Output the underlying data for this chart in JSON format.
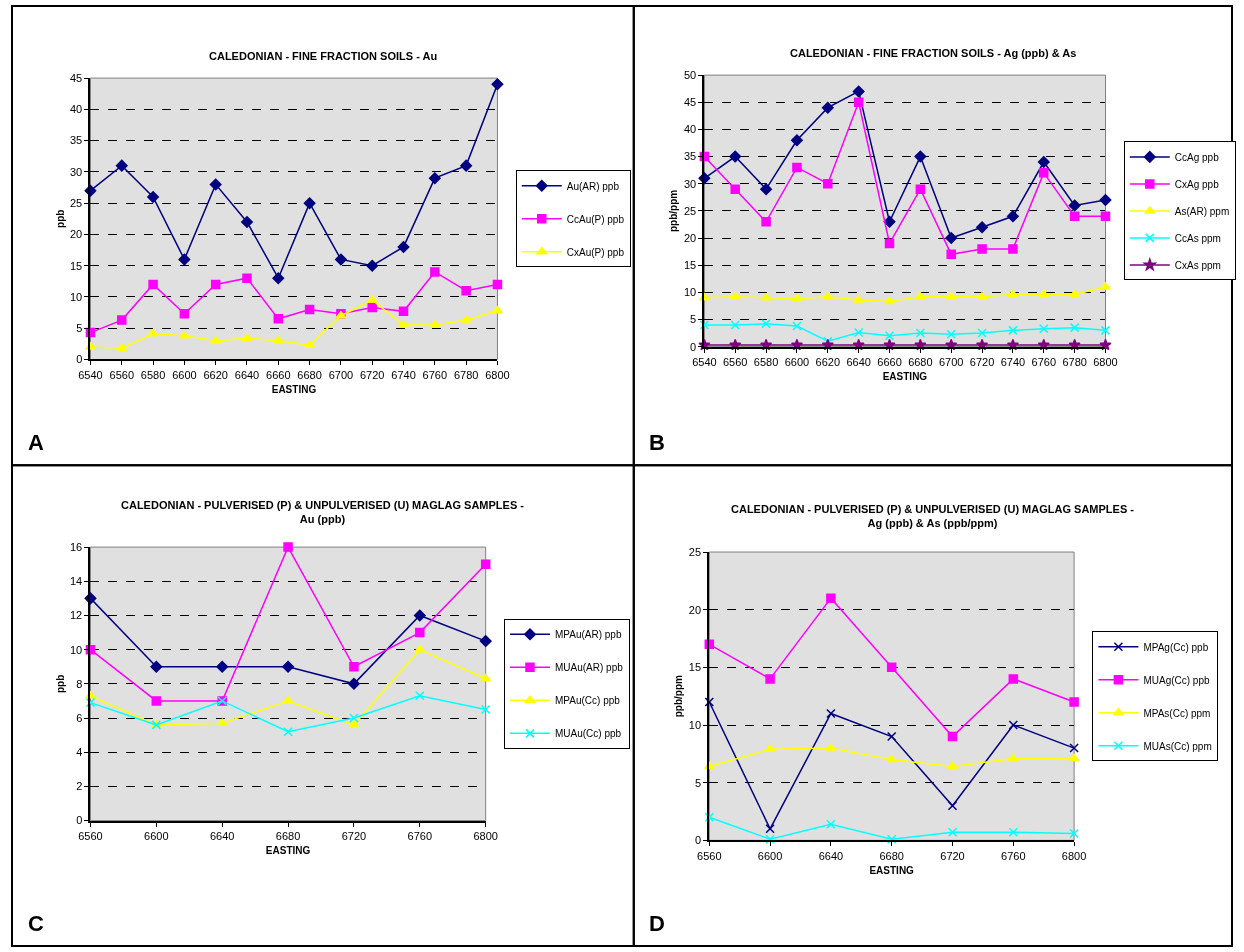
{
  "chart_data": [
    {
      "type": "line",
      "title": "CALEDONIAN - FINE FRACTION SOILS - Au",
      "xlabel": "EASTING",
      "ylabel": "ppb",
      "annotations": [
        "A"
      ],
      "x": [
        6540,
        6560,
        6580,
        6600,
        6620,
        6640,
        6660,
        6680,
        6700,
        6720,
        6740,
        6760,
        6780,
        6800
      ],
      "xlim": [
        6540,
        6800
      ],
      "xticks": [
        6540,
        6560,
        6580,
        6600,
        6620,
        6640,
        6660,
        6680,
        6700,
        6720,
        6740,
        6760,
        6780,
        6800
      ],
      "ylim": [
        0,
        45
      ],
      "yticks": [
        0,
        5,
        10,
        15,
        20,
        25,
        30,
        35,
        40,
        45
      ],
      "grid": "y",
      "legend": "right",
      "series": [
        {
          "name": "Au(AR) ppb",
          "color": "#000080",
          "marker": "diamond",
          "values": [
            27,
            31,
            26,
            16,
            28,
            22,
            13,
            25,
            16,
            15,
            18,
            29,
            31,
            44
          ]
        },
        {
          "name": "CcAu(P) ppb",
          "color": "#ff00ff",
          "marker": "square",
          "values": [
            4.3,
            6.3,
            12,
            7.3,
            12,
            13,
            6.5,
            8,
            7.3,
            8.3,
            7.7,
            14,
            11,
            12
          ]
        },
        {
          "name": "CxAu(P) ppb",
          "color": "#ffff00",
          "marker": "triangle",
          "values": [
            2,
            1.8,
            4.1,
            3.8,
            3,
            3.4,
            3,
            2.3,
            7,
            9.5,
            5.5,
            5.5,
            6.3,
            7.8
          ]
        }
      ]
    },
    {
      "type": "line",
      "title": "CALEDONIAN - FINE FRACTION SOILS - Ag (ppb) & As",
      "xlabel": "EASTING",
      "ylabel": "ppb/ppm",
      "annotations": [
        "B"
      ],
      "x": [
        6540,
        6560,
        6580,
        6600,
        6620,
        6640,
        6660,
        6680,
        6700,
        6720,
        6740,
        6760,
        6780,
        6800
      ],
      "xlim": [
        6540,
        6800
      ],
      "xticks": [
        6540,
        6560,
        6580,
        6600,
        6620,
        6640,
        6660,
        6680,
        6700,
        6720,
        6740,
        6760,
        6780,
        6800
      ],
      "ylim": [
        0,
        50
      ],
      "yticks": [
        0,
        5,
        10,
        15,
        20,
        25,
        30,
        35,
        40,
        45,
        50
      ],
      "grid": "y",
      "legend": "right",
      "series": [
        {
          "name": "CcAg ppb",
          "color": "#000080",
          "marker": "diamond",
          "values": [
            31,
            35,
            29,
            38,
            44,
            47,
            23,
            35,
            20,
            22,
            24,
            34,
            26,
            27
          ]
        },
        {
          "name": "CxAg ppb",
          "color": "#ff00ff",
          "marker": "square",
          "values": [
            35,
            29,
            23,
            33,
            30,
            45,
            19,
            29,
            17,
            18,
            18,
            32,
            24,
            24
          ]
        },
        {
          "name": "As(AR) ppm",
          "color": "#ffff00",
          "marker": "triangle",
          "values": [
            9,
            9.2,
            9,
            8.8,
            9.2,
            8.6,
            8.3,
            9.2,
            9.2,
            9.2,
            9.6,
            9.6,
            9.6,
            11
          ]
        },
        {
          "name": "CcAs ppm",
          "color": "#00ffff",
          "marker": "cross",
          "values": [
            4,
            4,
            4.2,
            3.8,
            1,
            2.6,
            2,
            2.5,
            2.3,
            2.5,
            3,
            3.3,
            3.5,
            3
          ]
        },
        {
          "name": "CxAs ppm",
          "color": "#800080",
          "marker": "star",
          "values": [
            0.3,
            0.3,
            0.3,
            0.3,
            0.3,
            0.3,
            0.3,
            0.3,
            0.3,
            0.3,
            0.3,
            0.3,
            0.3,
            0.3
          ]
        }
      ]
    },
    {
      "type": "line",
      "title": "CALEDONIAN - PULVERISED (P) & UNPULVERISED (U) MAGLAG SAMPLES - Au (ppb)",
      "xlabel": "EASTING",
      "ylabel": "ppb",
      "annotations": [
        "C"
      ],
      "x": [
        6560,
        6600,
        6640,
        6680,
        6720,
        6760,
        6800
      ],
      "xlim": [
        6560,
        6800
      ],
      "xticks": [
        6560,
        6600,
        6640,
        6680,
        6720,
        6760,
        6800
      ],
      "ylim": [
        0,
        16
      ],
      "yticks": [
        0,
        2,
        4,
        6,
        8,
        10,
        12,
        14,
        16
      ],
      "grid": "y",
      "legend": "right",
      "series": [
        {
          "name": "MPAu(AR) ppb",
          "color": "#000080",
          "marker": "diamond",
          "values": [
            13,
            9,
            9,
            9,
            8,
            12,
            10.5
          ]
        },
        {
          "name": "MUAu(AR) ppb",
          "color": "#ff00ff",
          "marker": "square",
          "values": [
            10,
            7,
            7,
            16,
            9,
            11,
            15
          ]
        },
        {
          "name": "MPAu(Cc) ppb",
          "color": "#ffff00",
          "marker": "triangle",
          "values": [
            7.3,
            5.6,
            5.7,
            7,
            5.6,
            10,
            8.3
          ]
        },
        {
          "name": "MUAu(Cc) ppb",
          "color": "#00ffff",
          "marker": "cross",
          "values": [
            6.9,
            5.6,
            7,
            5.2,
            6,
            7.3,
            6.5
          ]
        }
      ]
    },
    {
      "type": "line",
      "title": "CALEDONIAN - PULVERISED (P) & UNPULVERISED (U) MAGLAG SAMPLES - Ag (ppb) & As (ppb/ppm)",
      "xlabel": "EASTING",
      "ylabel": "ppb/ppm",
      "annotations": [
        "D"
      ],
      "x": [
        6560,
        6600,
        6640,
        6680,
        6720,
        6760,
        6800
      ],
      "xlim": [
        6560,
        6800
      ],
      "xticks": [
        6560,
        6600,
        6640,
        6680,
        6720,
        6760,
        6800
      ],
      "ylim": [
        0,
        25
      ],
      "yticks": [
        0,
        5,
        10,
        15,
        20,
        25
      ],
      "grid": "y",
      "legend": "right",
      "series": [
        {
          "name": "MPAg(Cc) ppb",
          "color": "#000080",
          "marker": "cross",
          "values": [
            12,
            1,
            11,
            9,
            3,
            10,
            8
          ]
        },
        {
          "name": "MUAg(Cc) ppb",
          "color": "#ff00ff",
          "marker": "square",
          "values": [
            17,
            14,
            21,
            15,
            9,
            14,
            12
          ]
        },
        {
          "name": "MPAs(Cc) ppm",
          "color": "#ffff00",
          "marker": "triangle",
          "values": [
            6.4,
            7.9,
            8,
            7,
            6.4,
            7.1,
            7.1
          ]
        },
        {
          "name": "MUAs(Cc) ppm",
          "color": "#00ffff",
          "marker": "cross",
          "values": [
            2,
            0.1,
            1.4,
            0.1,
            0.7,
            0.7,
            0.6
          ]
        }
      ]
    }
  ]
}
